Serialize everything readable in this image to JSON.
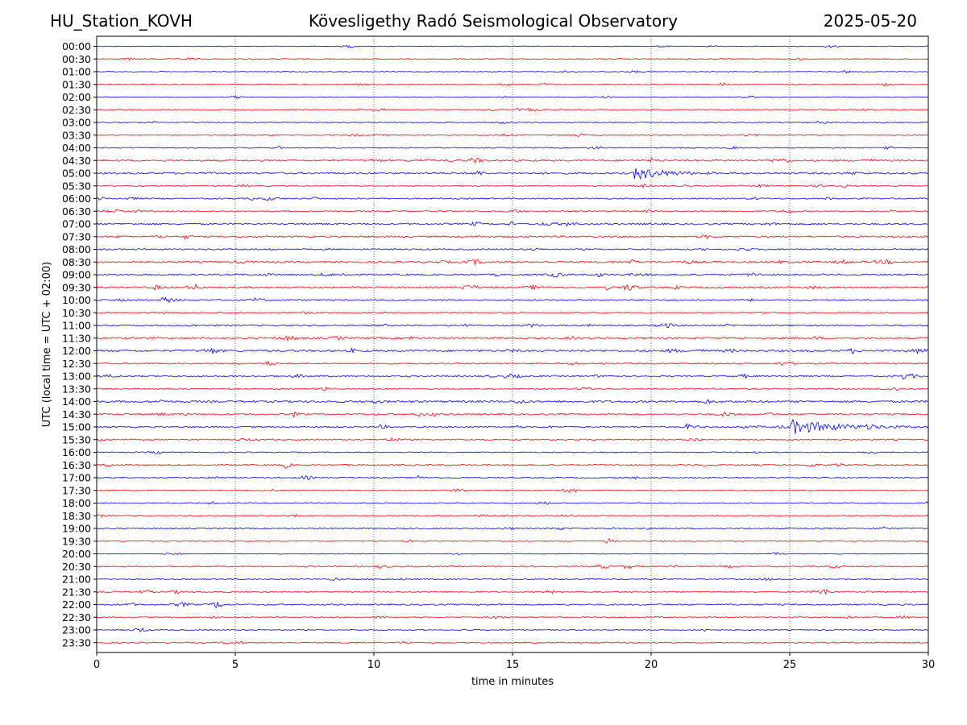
{
  "header": {
    "station": "HU_Station_KOVH",
    "observatory": "Kövesligethy Radó Seismological Observatory",
    "date": "2025-05-20"
  },
  "chart_data": {
    "type": "line",
    "title": "Kövesligethy Radó Seismological Observatory",
    "xlabel": "time in minutes",
    "ylabel": "UTC (local time = UTC + 02:00)",
    "xlim": [
      0,
      30
    ],
    "x_ticks": [
      0,
      5,
      10,
      15,
      20,
      25,
      30
    ],
    "x_gridlines": [
      5,
      10,
      15,
      20,
      25
    ],
    "grid": "vertical dotted",
    "rows": [
      "00:00",
      "00:30",
      "01:00",
      "01:30",
      "02:00",
      "02:30",
      "03:00",
      "03:30",
      "04:00",
      "04:30",
      "05:00",
      "05:30",
      "06:00",
      "06:30",
      "07:00",
      "07:30",
      "08:00",
      "08:30",
      "09:00",
      "09:30",
      "10:00",
      "10:30",
      "11:00",
      "11:30",
      "12:00",
      "12:30",
      "13:00",
      "13:30",
      "14:00",
      "14:30",
      "15:00",
      "15:30",
      "16:00",
      "16:30",
      "17:00",
      "17:30",
      "18:00",
      "18:30",
      "19:00",
      "19:30",
      "20:00",
      "20:30",
      "21:00",
      "21:30",
      "22:00",
      "22:30",
      "23:00",
      "23:30"
    ],
    "row_colors": [
      "#0000ff",
      "#ff0000"
    ],
    "noise_level": [
      0.5,
      0.7,
      0.5,
      0.6,
      0.5,
      0.7,
      0.6,
      0.7,
      0.7,
      1.2,
      1.3,
      0.8,
      0.9,
      0.9,
      1.2,
      1.1,
      1.0,
      1.2,
      1.1,
      1.1,
      1.0,
      0.9,
      1.0,
      1.3,
      1.4,
      0.9,
      1.1,
      0.9,
      1.4,
      1.1,
      1.0,
      0.9,
      0.7,
      1.0,
      0.9,
      0.7,
      0.7,
      0.7,
      0.8,
      0.7,
      0.5,
      0.9,
      0.8,
      0.9,
      1.0,
      0.8,
      0.7,
      0.8
    ],
    "events": [
      {
        "row": "05:00",
        "start_min": 19.4,
        "peak_amplitude": 8,
        "duration_min": 3.0
      },
      {
        "row": "15:00",
        "start_min": 25.0,
        "peak_amplitude": 9,
        "duration_min": 5.0
      },
      {
        "row": "10:00",
        "start_min": 2.3,
        "peak_amplitude": 6,
        "duration_min": 0.9
      },
      {
        "row": "09:30",
        "start_min": 2.1,
        "peak_amplitude": 3.5,
        "duration_min": 0.5
      },
      {
        "row": "07:30",
        "start_min": 3.2,
        "peak_amplitude": 2.5,
        "duration_min": 0.4
      },
      {
        "row": "14:30",
        "start_min": 7.1,
        "peak_amplitude": 3,
        "duration_min": 0.5
      },
      {
        "row": "16:30",
        "start_min": 6.8,
        "peak_amplitude": 3,
        "duration_min": 0.6
      },
      {
        "row": "04:30",
        "start_min": 20.0,
        "peak_amplitude": 3,
        "duration_min": 0.5
      },
      {
        "row": "15:00",
        "start_min": 21.3,
        "peak_amplitude": 3,
        "duration_min": 0.9
      },
      {
        "row": "02:30",
        "start_min": 15.1,
        "peak_amplitude": 2.5,
        "duration_min": 0.3
      },
      {
        "row": "03:30",
        "start_min": 14.6,
        "peak_amplitude": 2.5,
        "duration_min": 0.3
      },
      {
        "row": "09:30",
        "start_min": 18.4,
        "peak_amplitude": 2.5,
        "duration_min": 0.3
      },
      {
        "row": "06:00",
        "start_min": 5.5,
        "peak_amplitude": 2.5,
        "duration_min": 0.5
      },
      {
        "row": "15:30",
        "start_min": 0.1,
        "peak_amplitude": 2.5,
        "duration_min": 0.6
      },
      {
        "row": "14:00",
        "start_min": 2.3,
        "peak_amplitude": 2.5,
        "duration_min": 0.4
      },
      {
        "row": "12:00",
        "start_min": 9.2,
        "peak_amplitude": 2.5,
        "duration_min": 0.4
      },
      {
        "row": "17:00",
        "start_min": 11.6,
        "peak_amplitude": 2.5,
        "duration_min": 0.3
      },
      {
        "row": "21:30",
        "start_min": 26.3,
        "peak_amplitude": 2,
        "duration_min": 0.3
      },
      {
        "row": "11:30",
        "start_min": 25.9,
        "peak_amplitude": 2,
        "duration_min": 0.4
      }
    ]
  }
}
